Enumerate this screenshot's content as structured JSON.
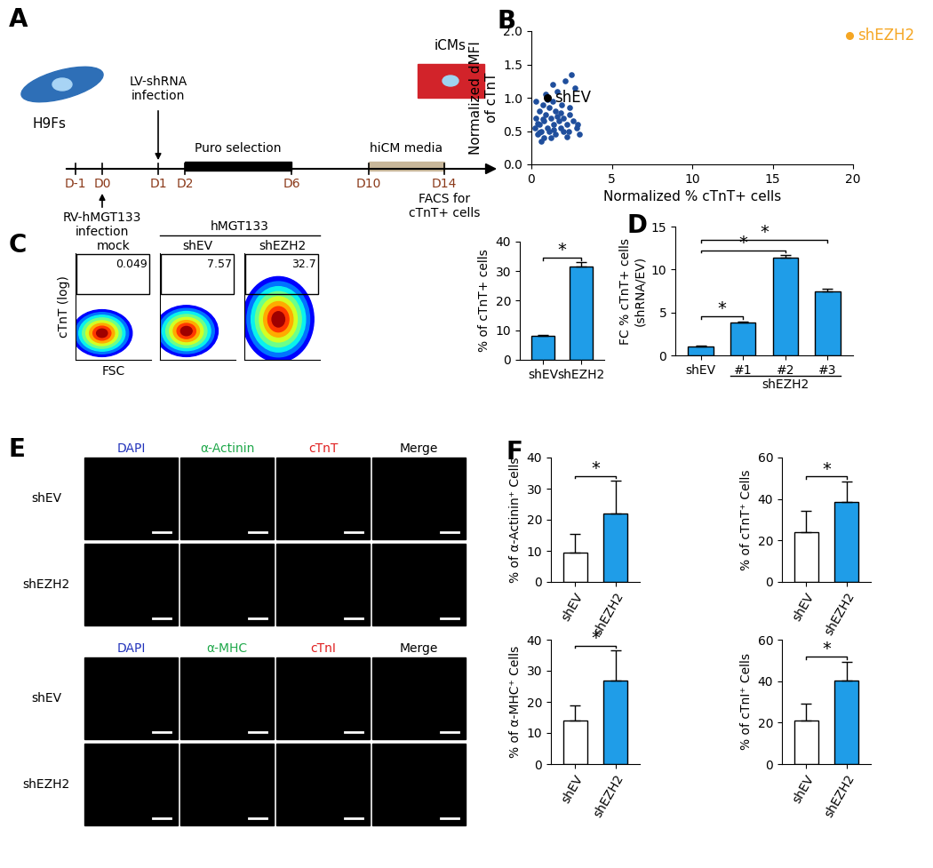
{
  "diagram": {
    "panel": "A",
    "start": "H9Fs",
    "end": "iCMs",
    "days": [
      "D-1",
      "D0",
      "D1",
      "D2",
      "D6",
      "D10",
      "D14"
    ],
    "shRNA_infection": "LV-shRNA\ninfection",
    "rv_infection": "RV-hMGT133\ninfection",
    "selection": "Puro selection",
    "media": "hiCM media",
    "readout": "FACS for\ncTnT+ cells"
  },
  "chart_data": [
    {
      "type": "scatter",
      "panel": "B",
      "xlabel": "Normalized % cTnT+ cells",
      "ylabel": "Normalized dMFI\nof cTnT",
      "x": [
        0.2,
        0.3,
        0.4,
        0.5,
        0.5,
        0.6,
        0.7,
        0.8,
        0.8,
        0.9,
        1.0,
        1.1,
        1.1,
        1.2,
        1.3,
        1.4,
        1.5,
        1.5,
        1.6,
        1.7,
        1.8,
        1.9,
        2.0,
        2.1,
        2.2,
        2.3,
        2.4,
        2.5,
        2.6,
        2.8,
        3.0,
        0.3,
        0.6,
        0.9,
        1.2,
        1.6,
        2.0,
        2.4,
        2.7,
        0.4,
        1.0,
        1.4,
        1.8,
        2.2,
        0.7,
        1.3,
        2.9,
        0.5
      ],
      "y": [
        0.55,
        0.7,
        0.45,
        0.8,
        0.6,
        0.5,
        0.9,
        0.65,
        0.4,
        0.75,
        0.55,
        0.85,
        0.5,
        0.7,
        0.95,
        0.6,
        0.45,
        0.8,
        1.1,
        0.65,
        0.55,
        0.9,
        0.7,
        1.25,
        0.6,
        0.5,
        0.75,
        1.35,
        0.65,
        0.55,
        0.45,
        0.95,
        0.35,
        1.05,
        0.4,
        0.72,
        0.5,
        0.85,
        1.15,
        0.62,
        0.98,
        0.52,
        0.78,
        0.42,
        0.68,
        1.2,
        0.6,
        0.48
      ],
      "color": "#1f4e9c",
      "annotated_points": [
        {
          "label": "shEV",
          "x": 1.0,
          "y": 1.0,
          "color": "#000000"
        },
        {
          "label": "shEZH2",
          "x": 19.8,
          "y": 1.93,
          "color": "#f5a623"
        }
      ],
      "xlim": [
        0,
        20
      ],
      "xticks": [
        0,
        5,
        10,
        15,
        20
      ],
      "ylim": [
        0,
        2
      ],
      "yticks": [
        {
          "value": 0,
          "label": "0.0"
        },
        {
          "value": 0.5,
          "label": "0.5"
        },
        {
          "value": 1,
          "label": "1.0"
        },
        {
          "value": 1.5,
          "label": "1.5"
        },
        {
          "value": 2,
          "label": "2.0"
        }
      ]
    },
    {
      "type": "flow_cytometry",
      "panel": "C",
      "group_label": "hMGT133",
      "xlabel": "FSC",
      "ylabel": "cTnT (log)",
      "samples": [
        "mock",
        "shEV",
        "shEZH2"
      ],
      "gate_values": [
        0.049,
        7.57,
        32.7
      ]
    },
    {
      "type": "bar",
      "categories": [
        "shEV",
        "shEZH2"
      ],
      "values": [
        8.0,
        31.5
      ],
      "errors": [
        0.3,
        1.5
      ],
      "color": "#1f9de8",
      "ylabel": "% of cTnT+ cells",
      "ylim": [
        0,
        40
      ],
      "yticks": [
        0,
        10,
        20,
        30,
        40
      ],
      "significance": [
        {
          "from": "shEV",
          "to": "shEZH2",
          "label": "*"
        }
      ]
    },
    {
      "type": "bar",
      "panel": "D",
      "categories": [
        "shEV",
        "#1",
        "#2",
        "#3"
      ],
      "values": [
        1.0,
        3.8,
        11.4,
        7.5
      ],
      "errors": [
        0.1,
        0.15,
        0.25,
        0.3
      ],
      "color": "#1f9de8",
      "group_label": {
        "text": "shEZH2",
        "categories": [
          "#1",
          "#2",
          "#3"
        ]
      },
      "ylabel": "FC % cTnT+ cells\n(shRNA/EV)",
      "ylim": [
        0,
        15
      ],
      "yticks": [
        0,
        5,
        10,
        15
      ],
      "significance": [
        {
          "from": "shEV",
          "to": "#1",
          "label": "*"
        },
        {
          "from": "shEV",
          "to": "#2",
          "label": "*"
        },
        {
          "from": "shEV",
          "to": "#3",
          "label": "*"
        }
      ]
    },
    {
      "type": "bar",
      "panel": "F",
      "categories": [
        "shEV",
        "shEZH2"
      ],
      "values": [
        9.5,
        22.0
      ],
      "errors": [
        6.0,
        10.5
      ],
      "colors": [
        "#ffffff",
        "#1f9de8"
      ],
      "ylabel": "% of α-Actinin⁺ Cells",
      "ylim": [
        0,
        40
      ],
      "yticks": [
        0,
        10,
        20,
        30,
        40
      ],
      "significance": [
        {
          "from": "shEV",
          "to": "shEZH2",
          "label": "*"
        }
      ]
    },
    {
      "type": "bar",
      "categories": [
        "shEV",
        "shEZH2"
      ],
      "values": [
        24.0,
        38.5
      ],
      "errors": [
        10.5,
        10.0
      ],
      "colors": [
        "#ffffff",
        "#1f9de8"
      ],
      "ylabel": "% of cTnT⁺ Cells",
      "ylim": [
        0,
        60
      ],
      "yticks": [
        0,
        20,
        40,
        60
      ],
      "significance": [
        {
          "from": "shEV",
          "to": "shEZH2",
          "label": "*"
        }
      ]
    },
    {
      "type": "bar",
      "categories": [
        "shEV",
        "shEZH2"
      ],
      "values": [
        14.0,
        27.0
      ],
      "errors": [
        5.0,
        9.5
      ],
      "colors": [
        "#ffffff",
        "#1f9de8"
      ],
      "ylabel": "% of α-MHC⁺ Cells",
      "ylim": [
        0,
        40
      ],
      "yticks": [
        0,
        10,
        20,
        30,
        40
      ],
      "significance": [
        {
          "from": "shEV",
          "to": "shEZH2",
          "label": "*"
        }
      ]
    },
    {
      "type": "bar",
      "categories": [
        "shEV",
        "shEZH2"
      ],
      "values": [
        21.0,
        40.5
      ],
      "errors": [
        8.0,
        9.0
      ],
      "colors": [
        "#ffffff",
        "#1f9de8"
      ],
      "ylabel": "% of cTnI⁺ Cells",
      "ylim": [
        0,
        60
      ],
      "yticks": [
        0,
        20,
        40,
        60
      ],
      "significance": [
        {
          "from": "shEV",
          "to": "shEZH2",
          "label": "*"
        }
      ]
    }
  ],
  "images": {
    "panel": "E",
    "blocks": [
      {
        "columns": [
          "DAPI",
          "α-Actinin",
          "cTnT",
          "Merge"
        ],
        "colors": [
          "#2233bb",
          "#1fa84a",
          "#e02020",
          "#000000"
        ],
        "rows": [
          "shEV",
          "shEZH2"
        ]
      },
      {
        "columns": [
          "DAPI",
          "α-MHC",
          "cTnI",
          "Merge"
        ],
        "colors": [
          "#2233bb",
          "#1fa84a",
          "#e02020",
          "#000000"
        ],
        "rows": [
          "shEV",
          "shEZH2"
        ]
      }
    ]
  }
}
